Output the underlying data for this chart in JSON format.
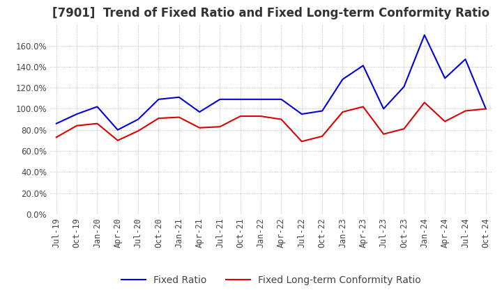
{
  "title": "[7901]  Trend of Fixed Ratio and Fixed Long-term Conformity Ratio",
  "x_labels": [
    "Jul-19",
    "Oct-19",
    "Jan-20",
    "Apr-20",
    "Jul-20",
    "Oct-20",
    "Jan-21",
    "Apr-21",
    "Jul-21",
    "Oct-21",
    "Jan-22",
    "Apr-22",
    "Jul-22",
    "Oct-22",
    "Jan-23",
    "Apr-23",
    "Jul-23",
    "Oct-23",
    "Jan-24",
    "Apr-24",
    "Jul-24",
    "Oct-24"
  ],
  "fixed_ratio": [
    0.86,
    0.95,
    1.02,
    0.8,
    0.9,
    1.09,
    1.11,
    0.97,
    1.09,
    1.09,
    1.09,
    1.09,
    0.95,
    0.98,
    1.28,
    1.41,
    1.0,
    1.21,
    1.7,
    1.29,
    1.47,
    1.0
  ],
  "fixed_lt_ratio": [
    0.73,
    0.84,
    0.86,
    0.7,
    0.79,
    0.91,
    0.92,
    0.82,
    0.83,
    0.93,
    0.93,
    0.9,
    0.69,
    0.74,
    0.97,
    1.02,
    0.76,
    0.81,
    1.06,
    0.88,
    0.98,
    1.0
  ],
  "ylim": [
    0.0,
    1.8
  ],
  "yticks": [
    0.0,
    0.2,
    0.4,
    0.6,
    0.8,
    1.0,
    1.2,
    1.4,
    1.6
  ],
  "fixed_ratio_color": "#0000dd",
  "fixed_lt_ratio_color": "#dd0000",
  "grid_color": "#aaaaaa",
  "background_color": "#ffffff",
  "title_fontsize": 12,
  "legend_fontsize": 10,
  "tick_fontsize": 8.5
}
